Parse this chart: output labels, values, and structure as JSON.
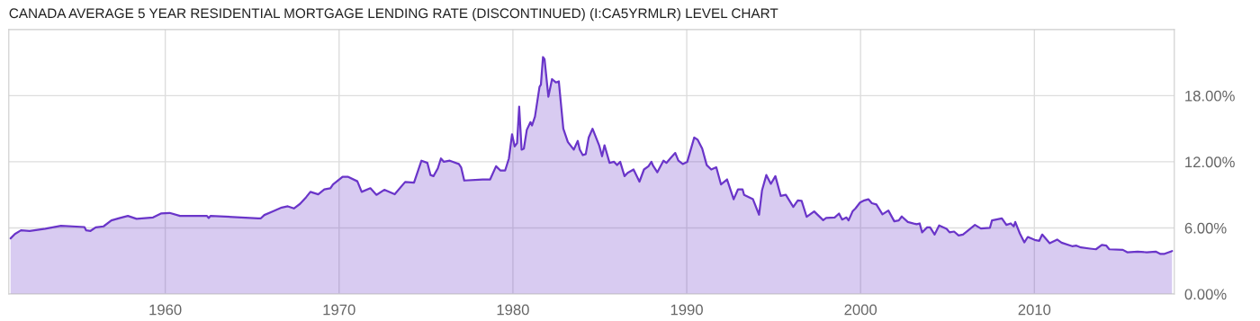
{
  "chart_data": {
    "type": "area",
    "title": "CANADA AVERAGE 5 YEAR RESIDENTIAL MORTGAGE LENDING RATE (DISCONTINUED) (I:CA5YRMLR) LEVEL CHART",
    "xlim": [
      1951.0,
      2018.05
    ],
    "xticks": [
      1960,
      1970,
      1980,
      1990,
      2000,
      2010
    ],
    "ylim": [
      0,
      24
    ],
    "yticks": [
      {
        "value": 0,
        "label": "0.00%"
      },
      {
        "value": 6,
        "label": "6.00%"
      },
      {
        "value": 12,
        "label": "12.00%"
      },
      {
        "value": 18,
        "label": "18.00%"
      }
    ],
    "grid": true,
    "legend": false,
    "series": [
      {
        "color": "#6a35c9",
        "x": [
          1951.1,
          1951.35,
          1951.7,
          1952.2,
          1953.1,
          1954.0,
          1955.35,
          1955.45,
          1955.7,
          1956.0,
          1956.45,
          1956.9,
          1957.4,
          1957.85,
          1958.35,
          1959.3,
          1959.75,
          1960.25,
          1960.85,
          1962.4,
          1962.5,
          1962.6,
          1965.35,
          1965.5,
          1965.7,
          1966.2,
          1966.7,
          1967.05,
          1967.4,
          1967.75,
          1968.1,
          1968.35,
          1968.8,
          1969.15,
          1969.5,
          1969.65,
          1970.2,
          1970.5,
          1971.05,
          1971.3,
          1971.8,
          1972.15,
          1972.6,
          1973.2,
          1973.8,
          1974.31,
          1974.74,
          1975.08,
          1975.26,
          1975.43,
          1975.68,
          1975.86,
          1976.03,
          1976.37,
          1976.89,
          1977.02,
          1977.2,
          1978.26,
          1978.69,
          1979.03,
          1979.29,
          1979.55,
          1979.77,
          1979.95,
          1980.1,
          1980.24,
          1980.36,
          1980.5,
          1980.63,
          1980.8,
          1981.01,
          1981.1,
          1981.27,
          1981.53,
          1981.61,
          1981.73,
          1981.82,
          1982.04,
          1982.25,
          1982.47,
          1982.64,
          1982.9,
          1983.16,
          1983.5,
          1983.73,
          1983.85,
          1984.02,
          1984.19,
          1984.36,
          1984.58,
          1984.96,
          1985.13,
          1985.27,
          1985.56,
          1985.82,
          1985.99,
          1986.17,
          1986.42,
          1986.6,
          1986.94,
          1987.28,
          1987.54,
          1987.8,
          1987.97,
          1988.06,
          1988.31,
          1988.66,
          1988.83,
          1989.05,
          1989.34,
          1989.52,
          1989.77,
          1990.03,
          1990.43,
          1990.63,
          1990.89,
          1991.15,
          1991.41,
          1991.7,
          1991.97,
          1992.32,
          1992.7,
          1992.95,
          1993.21,
          1993.3,
          1993.81,
          1994.16,
          1994.33,
          1994.58,
          1994.84,
          1995.1,
          1995.41,
          1995.7,
          1996.13,
          1996.39,
          1996.61,
          1996.9,
          1997.33,
          1997.85,
          1998.02,
          1998.51,
          1998.76,
          1998.94,
          1999.19,
          1999.31,
          1999.54,
          1999.71,
          1999.97,
          2000.22,
          2000.45,
          2000.65,
          2000.91,
          2001.26,
          2001.6,
          2001.94,
          2002.2,
          2002.37,
          2002.72,
          2003.23,
          2003.4,
          2003.54,
          2003.83,
          2004.0,
          2004.26,
          2004.52,
          2004.95,
          2005.12,
          2005.38,
          2005.64,
          2005.89,
          2006.15,
          2006.58,
          2006.92,
          2007.44,
          2007.56,
          2008.13,
          2008.39,
          2008.64,
          2008.81,
          2008.9,
          2009.16,
          2009.42,
          2009.62,
          2010.02,
          2010.28,
          2010.45,
          2010.88,
          2011.31,
          2011.56,
          2012.17,
          2012.42,
          2012.68,
          2013.2,
          2013.54,
          2013.88,
          2014.14,
          2014.31,
          2015.09,
          2015.34,
          2015.94,
          2016.46,
          2016.98,
          2017.23,
          2017.49,
          2017.92
        ],
        "values": [
          5.05,
          5.45,
          5.78,
          5.73,
          5.92,
          6.19,
          6.08,
          5.78,
          5.73,
          6.05,
          6.14,
          6.68,
          6.9,
          7.09,
          6.82,
          6.95,
          7.31,
          7.36,
          7.09,
          7.09,
          6.9,
          7.09,
          6.87,
          6.87,
          7.17,
          7.5,
          7.85,
          7.96,
          7.77,
          8.18,
          8.78,
          9.27,
          9.05,
          9.49,
          9.6,
          9.95,
          10.64,
          10.64,
          10.23,
          9.27,
          9.6,
          9.0,
          9.46,
          9.05,
          10.17,
          10.1,
          12.1,
          11.9,
          10.8,
          10.7,
          11.4,
          12.3,
          12.0,
          12.1,
          11.8,
          11.5,
          10.3,
          10.4,
          10.4,
          11.6,
          11.2,
          11.2,
          12.3,
          14.5,
          13.4,
          13.7,
          17.0,
          13.1,
          13.2,
          14.9,
          15.6,
          15.3,
          16.1,
          18.8,
          19.0,
          21.5,
          21.3,
          17.9,
          19.5,
          19.2,
          19.3,
          15.0,
          13.8,
          13.1,
          13.9,
          13.1,
          12.6,
          12.7,
          14.2,
          15.0,
          13.5,
          12.5,
          13.5,
          11.9,
          12.0,
          11.7,
          12.0,
          10.7,
          11.0,
          11.3,
          10.2,
          11.3,
          11.6,
          12.0,
          11.65,
          11.05,
          12.1,
          11.9,
          12.3,
          12.8,
          12.1,
          11.8,
          12.0,
          14.2,
          14.0,
          13.2,
          11.7,
          11.3,
          11.5,
          9.95,
          10.4,
          8.6,
          9.5,
          9.5,
          9.0,
          8.6,
          7.2,
          9.4,
          10.8,
          10.0,
          10.7,
          8.9,
          9.0,
          7.9,
          8.5,
          8.45,
          7.0,
          7.5,
          6.7,
          6.9,
          6.95,
          7.3,
          6.76,
          6.95,
          6.68,
          7.5,
          7.77,
          8.3,
          8.5,
          8.6,
          8.24,
          8.13,
          7.23,
          7.58,
          6.6,
          6.68,
          7.04,
          6.54,
          6.33,
          6.41,
          5.6,
          6.05,
          6.05,
          5.4,
          6.22,
          5.92,
          5.6,
          5.67,
          5.32,
          5.4,
          5.73,
          6.27,
          5.95,
          6.0,
          6.68,
          6.87,
          6.27,
          6.41,
          6.14,
          6.54,
          5.51,
          4.69,
          5.18,
          4.91,
          4.83,
          5.4,
          4.61,
          4.94,
          4.66,
          4.34,
          4.39,
          4.23,
          4.12,
          4.06,
          4.45,
          4.39,
          4.06,
          4.01,
          3.79,
          3.85,
          3.79,
          3.85,
          3.65,
          3.65,
          3.9
        ]
      }
    ]
  }
}
